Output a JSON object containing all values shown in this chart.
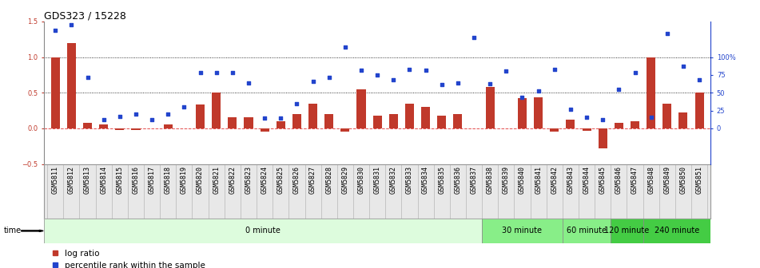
{
  "title": "GDS323 / 15228",
  "categories": [
    "GSM5811",
    "GSM5812",
    "GSM5813",
    "GSM5814",
    "GSM5815",
    "GSM5816",
    "GSM5817",
    "GSM5818",
    "GSM5819",
    "GSM5820",
    "GSM5821",
    "GSM5822",
    "GSM5823",
    "GSM5824",
    "GSM5825",
    "GSM5826",
    "GSM5827",
    "GSM5828",
    "GSM5829",
    "GSM5830",
    "GSM5831",
    "GSM5832",
    "GSM5833",
    "GSM5834",
    "GSM5835",
    "GSM5836",
    "GSM5837",
    "GSM5838",
    "GSM5839",
    "GSM5840",
    "GSM5841",
    "GSM5842",
    "GSM5843",
    "GSM5844",
    "GSM5845",
    "GSM5846",
    "GSM5847",
    "GSM5848",
    "GSM5849",
    "GSM5850",
    "GSM5851"
  ],
  "log_ratio": [
    1.0,
    1.2,
    0.08,
    0.05,
    -0.02,
    -0.02,
    0.0,
    0.05,
    0.0,
    0.33,
    0.5,
    0.15,
    0.15,
    -0.05,
    0.1,
    0.2,
    0.35,
    0.2,
    -0.05,
    0.55,
    0.18,
    0.2,
    0.35,
    0.3,
    0.18,
    0.2,
    0.0,
    0.58,
    0.0,
    0.42,
    0.44,
    -0.05,
    0.12,
    -0.03,
    -0.28,
    0.08,
    0.1,
    1.0,
    0.35,
    0.22,
    0.5
  ],
  "percentile": [
    1.38,
    1.45,
    0.72,
    0.12,
    0.17,
    0.2,
    0.12,
    0.2,
    0.3,
    0.78,
    0.78,
    0.78,
    0.64,
    0.14,
    0.14,
    0.35,
    0.66,
    0.72,
    1.14,
    0.82,
    0.75,
    0.68,
    0.83,
    0.82,
    0.62,
    0.64,
    1.28,
    0.63,
    0.8,
    0.43,
    0.52,
    0.83,
    0.27,
    0.15,
    0.12,
    0.55,
    0.78,
    0.16,
    1.33,
    0.87,
    0.68
  ],
  "ylim": [
    -0.5,
    1.5
  ],
  "yticks_left": [
    -0.5,
    0.0,
    0.5,
    1.0,
    1.5
  ],
  "yticks_right": [
    0.0,
    0.25,
    0.5,
    0.75,
    1.0
  ],
  "ytick_labels_right": [
    "0",
    "25",
    "50",
    "75",
    "100%"
  ],
  "bar_color": "#c0392b",
  "dot_color": "#2244cc",
  "bg_color": "#ffffff",
  "time_bands": [
    {
      "label": "0 minute",
      "start": 0,
      "end": 27,
      "color": "#ddfcdd"
    },
    {
      "label": "30 minute",
      "start": 27,
      "end": 32,
      "color": "#88dd88"
    },
    {
      "label": "60 minute",
      "start": 32,
      "end": 35,
      "color": "#88dd88"
    },
    {
      "label": "120 minute",
      "start": 35,
      "end": 37,
      "color": "#44bb44"
    },
    {
      "label": "240 minute",
      "start": 37,
      "end": 41,
      "color": "#44bb44"
    }
  ],
  "dotted_lines": [
    0.5,
    1.0
  ],
  "zero_line_color": "#dd2222",
  "tick_fontsize": 6.0,
  "title_fontsize": 9,
  "legend_fontsize": 7.5,
  "band_fontsize": 7
}
